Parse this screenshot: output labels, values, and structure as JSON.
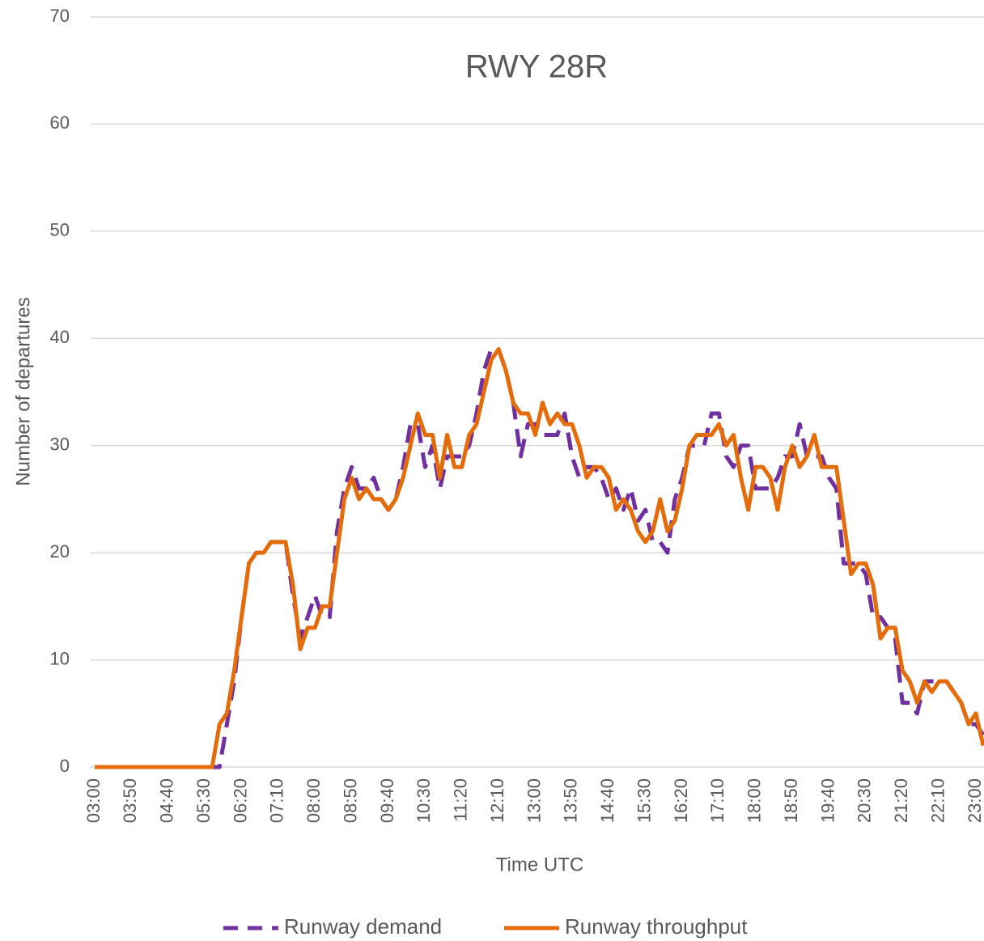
{
  "chart_data": {
    "type": "line",
    "title": "RWY 28R",
    "x_label": "Time UTC",
    "y_label": "Number of departures",
    "categories": [
      "03:00",
      null,
      null,
      null,
      null,
      "03:50",
      null,
      null,
      null,
      null,
      "04:40",
      null,
      null,
      null,
      null,
      "05:30",
      null,
      null,
      null,
      null,
      "06:20",
      null,
      null,
      null,
      null,
      "07:10",
      null,
      null,
      null,
      null,
      "08:00",
      null,
      null,
      null,
      null,
      "08:50",
      null,
      null,
      null,
      null,
      "09:40",
      null,
      null,
      null,
      null,
      "10:30",
      null,
      null,
      null,
      null,
      "11:20",
      null,
      null,
      null,
      null,
      "12:10",
      null,
      null,
      null,
      null,
      "13:00",
      null,
      null,
      null,
      null,
      "13:50",
      null,
      null,
      null,
      null,
      "14:40",
      null,
      null,
      null,
      null,
      "15:30",
      null,
      null,
      null,
      null,
      "16:20",
      null,
      null,
      null,
      null,
      "17:10",
      null,
      null,
      null,
      null,
      "18:00",
      null,
      null,
      null,
      null,
      "18:50",
      null,
      null,
      null,
      null,
      "19:40",
      null,
      null,
      null,
      null,
      "20:30",
      null,
      null,
      null,
      null,
      "21:20",
      null,
      null,
      null,
      null,
      "22:10",
      null,
      null,
      null,
      null,
      "23:00",
      null
    ],
    "series": [
      {
        "name": "Runway demand",
        "color": "#7030a0",
        "dashed": true,
        "values": [
          0,
          0,
          0,
          0,
          0,
          0,
          0,
          0,
          0,
          0,
          0,
          0,
          0,
          0,
          0,
          0,
          0,
          0,
          4,
          8,
          14,
          19,
          20,
          20,
          21,
          21,
          21,
          16,
          12,
          14,
          16,
          14,
          14,
          22,
          26,
          28,
          26,
          26,
          27,
          25,
          24,
          25,
          28,
          32,
          32,
          28,
          30,
          26,
          29,
          29,
          29,
          30,
          33,
          37,
          39,
          39,
          37,
          34,
          29,
          32,
          32,
          31,
          31,
          31,
          33,
          29,
          27,
          28,
          28,
          27,
          25,
          26,
          24,
          26,
          23,
          24,
          21,
          21,
          20,
          25,
          27,
          30,
          30,
          30,
          33,
          33,
          29,
          28,
          30,
          30,
          26,
          26,
          26,
          27,
          29,
          29,
          32,
          29,
          29,
          29,
          27,
          26,
          19,
          19,
          19,
          18,
          14,
          14,
          13,
          12,
          6,
          6,
          5,
          8,
          8,
          8,
          8,
          7,
          6,
          4,
          4,
          3
        ]
      },
      {
        "name": "Runway throughput",
        "color": "#e46c0a",
        "dashed": false,
        "values": [
          0,
          0,
          0,
          0,
          0,
          0,
          0,
          0,
          0,
          0,
          0,
          0,
          0,
          0,
          0,
          0,
          0,
          4,
          5,
          9,
          14,
          19,
          20,
          20,
          21,
          21,
          21,
          17,
          11,
          13,
          13,
          15,
          15,
          20,
          25,
          27,
          25,
          26,
          25,
          25,
          24,
          25,
          27,
          30,
          33,
          31,
          31,
          27,
          31,
          28,
          28,
          31,
          32,
          35,
          38,
          39,
          37,
          34,
          33,
          33,
          31,
          34,
          32,
          33,
          32,
          32,
          30,
          27,
          28,
          28,
          27,
          24,
          25,
          24,
          22,
          21,
          22,
          25,
          22,
          23,
          26,
          30,
          31,
          31,
          31,
          32,
          30,
          31,
          27,
          24,
          28,
          28,
          27,
          24,
          28,
          30,
          28,
          29,
          31,
          28,
          28,
          28,
          23,
          18,
          19,
          19,
          17,
          12,
          13,
          13,
          9,
          8,
          6,
          8,
          7,
          8,
          8,
          7,
          6,
          4,
          5,
          2
        ]
      }
    ],
    "ylim": [
      0,
      70
    ],
    "yticks": [
      0,
      10,
      20,
      30,
      40,
      50,
      60,
      70
    ],
    "grid": true,
    "legend": "bottom"
  }
}
